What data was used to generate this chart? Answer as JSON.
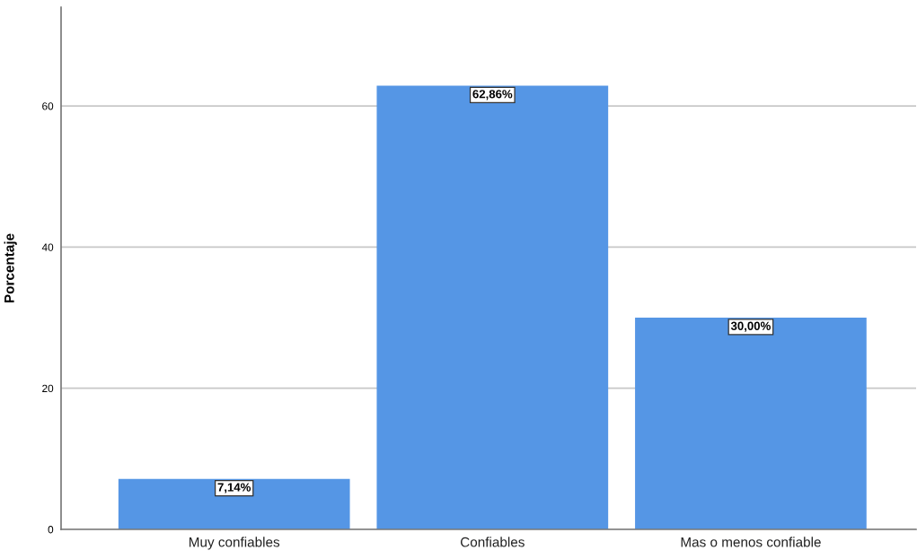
{
  "chart_data": {
    "type": "bar",
    "ylabel": "Porcentaje",
    "categories": [
      "Muy confiables",
      "Confiables",
      "Mas o menos confiable"
    ],
    "values": [
      7.14,
      62.86,
      30.0
    ],
    "color": "#5596e5",
    "value_labels": [
      "7,14%",
      "62,86%",
      "30,00%"
    ],
    "ylim": [
      0,
      74
    ],
    "yticks": [
      0,
      20,
      40,
      60
    ],
    "grid": "y",
    "legend": false
  }
}
